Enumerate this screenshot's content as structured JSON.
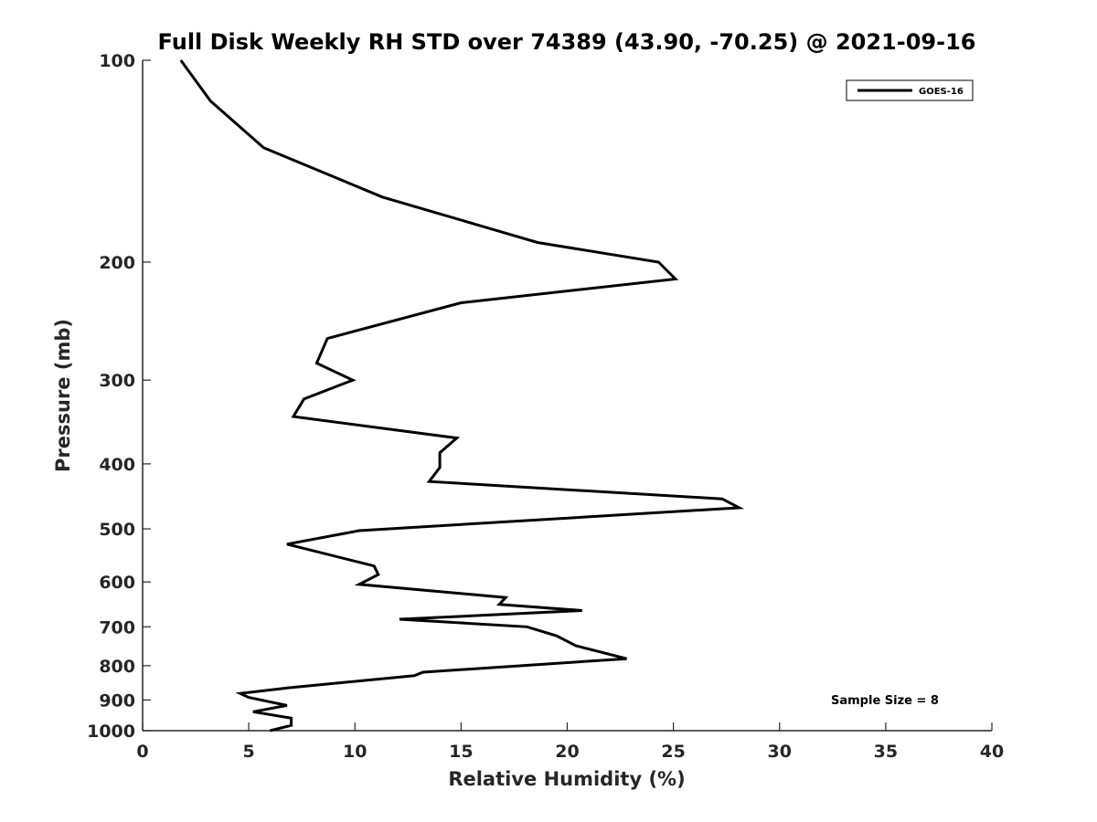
{
  "chart_data": {
    "type": "line",
    "title": "Full Disk Weekly RH STD over 74389 (43.90, -70.25) @ 2021-09-16",
    "xlabel": "Relative Humidity (%)",
    "ylabel": "Pressure (mb)",
    "xlim": [
      0,
      40
    ],
    "ylim": [
      1000,
      100
    ],
    "y_scale": "log",
    "y_reversed": true,
    "x_ticks": [
      0,
      5,
      10,
      15,
      20,
      25,
      30,
      35,
      40
    ],
    "y_ticks": [
      100,
      200,
      300,
      400,
      500,
      600,
      700,
      800,
      900,
      1000
    ],
    "grid": false,
    "legend_position": "top-right",
    "annotation": "Sample Size = 8",
    "series": [
      {
        "name": "GOES-16",
        "color": "#000000",
        "points": [
          [
            1.8,
            100
          ],
          [
            3.2,
            115
          ],
          [
            5.7,
            135
          ],
          [
            11.3,
            160
          ],
          [
            18.6,
            187
          ],
          [
            24.3,
            200
          ],
          [
            25.1,
            212
          ],
          [
            15.0,
            230
          ],
          [
            8.7,
            260
          ],
          [
            8.2,
            283
          ],
          [
            9.9,
            300
          ],
          [
            7.6,
            320
          ],
          [
            7.1,
            340
          ],
          [
            14.8,
            366
          ],
          [
            14.0,
            385
          ],
          [
            14.0,
            405
          ],
          [
            13.5,
            425
          ],
          [
            27.3,
            451
          ],
          [
            28.1,
            465
          ],
          [
            10.2,
            503
          ],
          [
            6.8,
            527
          ],
          [
            10.9,
            568
          ],
          [
            11.1,
            585
          ],
          [
            10.2,
            605
          ],
          [
            17.1,
            633
          ],
          [
            16.8,
            648
          ],
          [
            20.7,
            662
          ],
          [
            12.1,
            682
          ],
          [
            18.1,
            700
          ],
          [
            19.5,
            722
          ],
          [
            20.4,
            747
          ],
          [
            22.8,
            781
          ],
          [
            13.2,
            818
          ],
          [
            12.8,
            828
          ],
          [
            6.9,
            863
          ],
          [
            4.6,
            880
          ],
          [
            5.0,
            892
          ],
          [
            6.8,
            917
          ],
          [
            5.2,
            937
          ],
          [
            7.0,
            958
          ],
          [
            7.0,
            982
          ],
          [
            6.0,
            1000
          ]
        ]
      }
    ]
  }
}
